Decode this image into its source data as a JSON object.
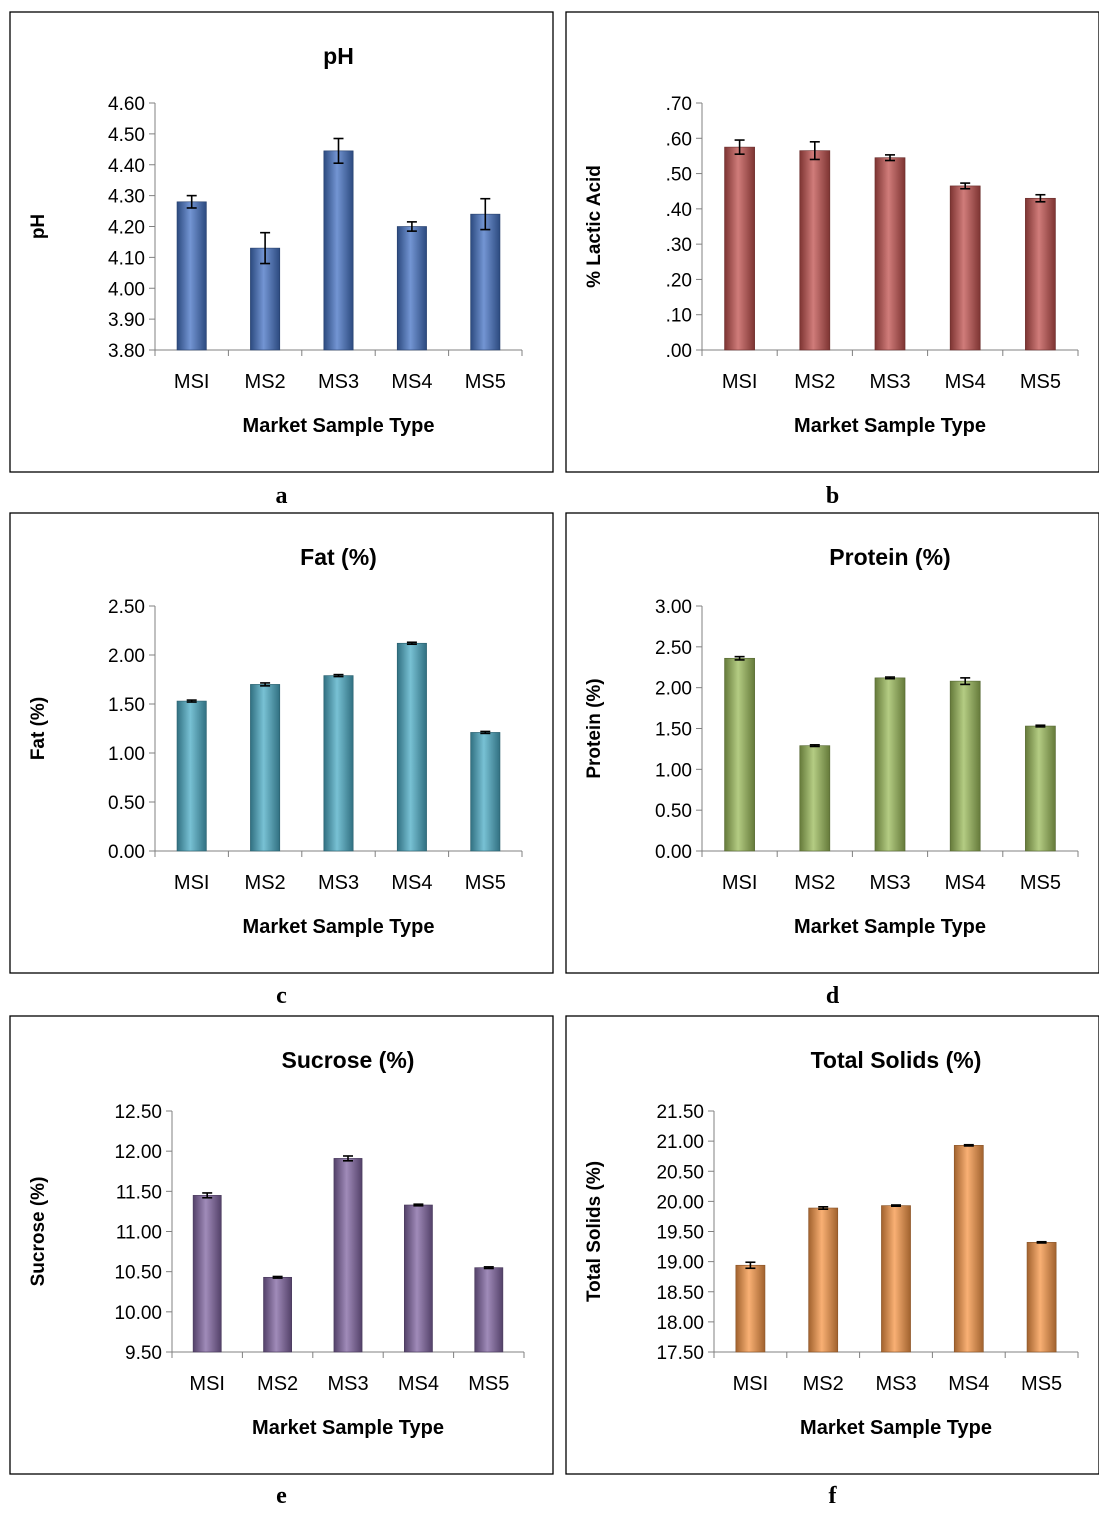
{
  "chart_data": [
    {
      "type": "bar",
      "panel_label": "a",
      "title": "pH",
      "xlabel": "Market Sample Type",
      "ylabel": "pH",
      "categories": [
        "MSI",
        "MS2",
        "MS3",
        "MS4",
        "MS5"
      ],
      "values": [
        4.28,
        4.13,
        4.445,
        4.2,
        4.24
      ],
      "errors": [
        0.02,
        0.05,
        0.04,
        0.015,
        0.05
      ],
      "ylim": [
        3.8,
        4.6
      ],
      "yticks": [
        "3.80",
        "3.90",
        "4.00",
        "4.10",
        "4.20",
        "4.30",
        "4.40",
        "4.50",
        "4.60"
      ],
      "color": "#4472C4"
    },
    {
      "type": "bar",
      "panel_label": "b",
      "title": "",
      "xlabel": "Market Sample Type",
      "ylabel": "% Lactic Acid",
      "categories": [
        "MSI",
        "MS2",
        "MS3",
        "MS4",
        "MS5"
      ],
      "values": [
        0.575,
        0.565,
        0.545,
        0.465,
        0.43
      ],
      "errors": [
        0.02,
        0.025,
        0.008,
        0.008,
        0.01
      ],
      "ylim": [
        0,
        0.7
      ],
      "yticks": [
        ".00",
        ".10",
        ".20",
        ".30",
        ".40",
        ".50",
        ".60",
        ".70"
      ],
      "color": "#C0504D"
    },
    {
      "type": "bar",
      "panel_label": "c",
      "title": "Fat (%)",
      "xlabel": "Market Sample Type",
      "ylabel": "Fat (%)",
      "categories": [
        "MSI",
        "MS2",
        "MS3",
        "MS4",
        "MS5"
      ],
      "values": [
        1.53,
        1.7,
        1.79,
        2.12,
        1.21
      ],
      "errors": [
        0.01,
        0.015,
        0.01,
        0.01,
        0.01
      ],
      "ylim": [
        0,
        2.5
      ],
      "yticks": [
        "0.00",
        "0.50",
        "1.00",
        "1.50",
        "2.00",
        "2.50"
      ],
      "color": "#4BACC6"
    },
    {
      "type": "bar",
      "panel_label": "d",
      "title": "Protein (%)",
      "xlabel": "Market Sample Type",
      "ylabel": "Protein (%)",
      "categories": [
        "MSI",
        "MS2",
        "MS3",
        "MS4",
        "MS5"
      ],
      "values": [
        2.36,
        1.29,
        2.12,
        2.08,
        1.53
      ],
      "errors": [
        0.02,
        0.01,
        0.01,
        0.04,
        0.01
      ],
      "ylim": [
        0,
        3.0
      ],
      "yticks": [
        "0.00",
        "0.50",
        "1.00",
        "1.50",
        "2.00",
        "2.50",
        "3.00"
      ],
      "color": "#9BBB59"
    },
    {
      "type": "bar",
      "panel_label": "e",
      "title": "Sucrose (%)",
      "xlabel": "Market Sample Type",
      "ylabel": "Sucrose (%)",
      "categories": [
        "MSI",
        "MS2",
        "MS3",
        "MS4",
        "MS5"
      ],
      "values": [
        11.45,
        10.43,
        11.91,
        11.33,
        10.55
      ],
      "errors": [
        0.03,
        0.01,
        0.03,
        0.01,
        0.01
      ],
      "ylim": [
        9.5,
        12.5
      ],
      "yticks": [
        "9.50",
        "10.00",
        "10.50",
        "11.00",
        "11.50",
        "12.00",
        "12.50"
      ],
      "color": "#8064A2"
    },
    {
      "type": "bar",
      "panel_label": "f",
      "title": "Total Solids (%)",
      "xlabel": "Market Sample Type",
      "ylabel": "Total Solids (%)",
      "categories": [
        "MSI",
        "MS2",
        "MS3",
        "MS4",
        "MS5"
      ],
      "values": [
        18.94,
        19.89,
        19.93,
        20.93,
        19.32
      ],
      "errors": [
        0.05,
        0.02,
        0.01,
        0.01,
        0.01
      ],
      "ylim": [
        17.5,
        21.5
      ],
      "yticks": [
        "17.50",
        "18.00",
        "18.50",
        "19.00",
        "19.50",
        "20.00",
        "20.50",
        "21.00",
        "21.50"
      ],
      "color": "#F79646"
    }
  ]
}
